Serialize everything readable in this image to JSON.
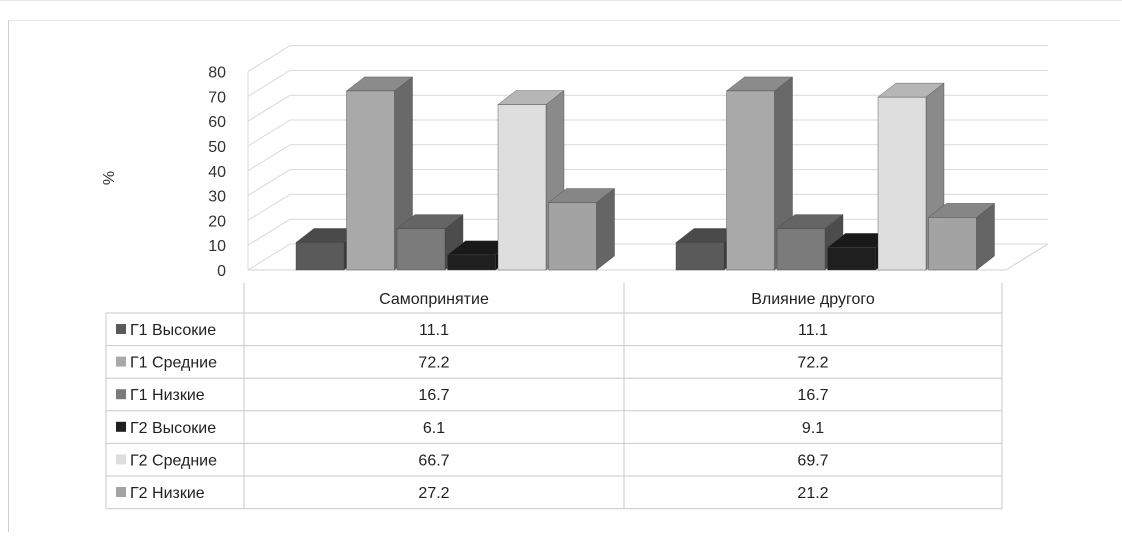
{
  "chart_data": {
    "type": "bar",
    "subtype": "3d-clustered-column-with-data-table",
    "ylabel": "%",
    "ylim": [
      0,
      80
    ],
    "yticks": [
      0,
      10,
      20,
      30,
      40,
      50,
      60,
      70,
      80
    ],
    "grid": true,
    "legend": "in-data-table-left",
    "categories": [
      "Самопринятие",
      "Влияние другого"
    ],
    "series": [
      {
        "name": "Г1 Высокие",
        "values": [
          11.1,
          11.1
        ],
        "labels": [
          "11.1",
          "11.1"
        ],
        "color": "#5a5a5a"
      },
      {
        "name": "Г1 Средние",
        "values": [
          72.2,
          72.2
        ],
        "labels": [
          "72.2",
          "72.2"
        ],
        "color": "#a9a9a9"
      },
      {
        "name": "Г1 Низкие",
        "values": [
          16.7,
          16.7
        ],
        "labels": [
          "16.7",
          "16.7"
        ],
        "color": "#7b7b7b"
      },
      {
        "name": "Г2 Высокие",
        "values": [
          6.1,
          9.1
        ],
        "labels": [
          "6.1",
          "9.1"
        ],
        "color": "#1f1f1f"
      },
      {
        "name": "Г2 Средние",
        "values": [
          66.7,
          69.7
        ],
        "labels": [
          "66.7",
          "69.7"
        ],
        "color": "#dedede"
      },
      {
        "name": "Г2 Низкие",
        "values": [
          27.2,
          21.2
        ],
        "labels": [
          "27.2",
          "21.2"
        ],
        "color": "#a3a3a3"
      }
    ]
  }
}
